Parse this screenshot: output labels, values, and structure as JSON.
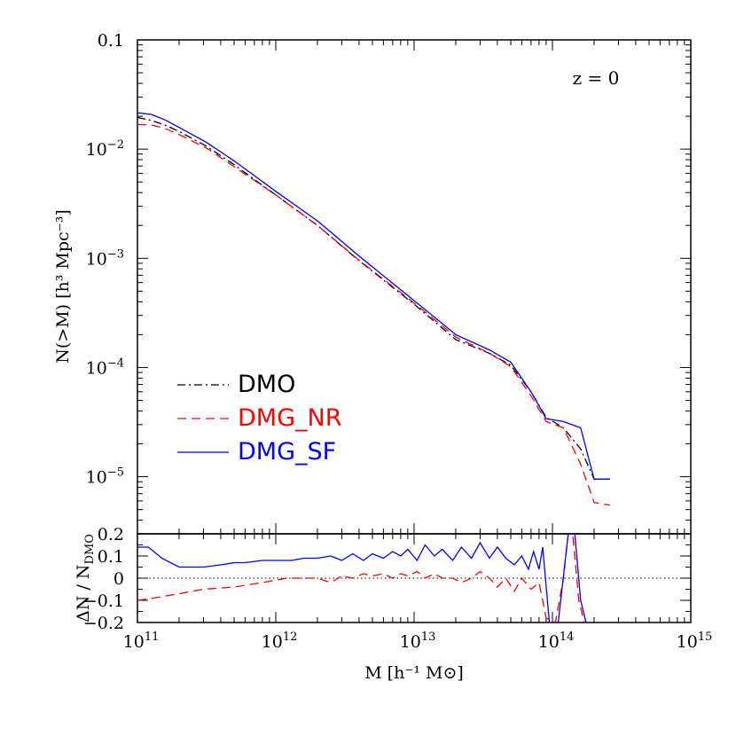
{
  "chart_data": [
    {
      "type": "line",
      "panel": "main",
      "annotation": "z = 0",
      "ylabel": "N(>M) [h³ Mpc⁻³]",
      "y_scale": "log",
      "ylim": [
        3e-06,
        0.1
      ],
      "x_scale": "log",
      "xlim": [
        100000000000.0,
        1000000000000000.0
      ],
      "y_tick_labels": [
        {
          "value": 0.1,
          "base": "0.1",
          "exp": ""
        },
        {
          "value": 0.01,
          "base": "10",
          "exp": "−2"
        },
        {
          "value": 0.001,
          "base": "10",
          "exp": "−3"
        },
        {
          "value": 0.0001,
          "base": "10",
          "exp": "−4"
        },
        {
          "value": 1e-05,
          "base": "10",
          "exp": "−5"
        }
      ],
      "legend_position": "lower-left",
      "series": [
        {
          "name": "DMO",
          "color": "#000000",
          "dash": "dashdot",
          "x": [
            100000000000.0,
            126000000000.0,
            158000000000.0,
            200000000000.0,
            316000000000.0,
            500000000000.0,
            1000000000000.0,
            2000000000000.0,
            4000000000000.0,
            10000000000000.0,
            20000000000000.0,
            35000000000000.0,
            50000000000000.0,
            70000000000000.0,
            90000000000000.0,
            120000000000000.0,
            160000000000000.0,
            200000000000000.0,
            260000000000000.0
          ],
          "y": [
            0.0195,
            0.0183,
            0.0166,
            0.0145,
            0.0106,
            0.0072,
            0.0038,
            0.002,
            0.00095,
            0.00038,
            0.00018,
            0.000135,
            0.000105,
            6e-05,
            3.5e-05,
            2.8e-05,
            1.8e-05,
            9.5e-06,
            9.5e-06
          ]
        },
        {
          "name": "DMG_NR",
          "color": "#ff0000",
          "dash": "dashed",
          "x": [
            100000000000.0,
            126000000000.0,
            158000000000.0,
            200000000000.0,
            316000000000.0,
            500000000000.0,
            1000000000000.0,
            2000000000000.0,
            4000000000000.0,
            10000000000000.0,
            20000000000000.0,
            35000000000000.0,
            50000000000000.0,
            70000000000000.0,
            90000000000000.0,
            120000000000000.0,
            160000000000000.0,
            200000000000000.0,
            260000000000000.0
          ],
          "y": [
            0.0168,
            0.0166,
            0.0155,
            0.0136,
            0.0102,
            0.0069,
            0.0038,
            0.002,
            0.00096,
            0.00039,
            0.00019,
            0.000135,
            0.000102,
            5.5e-05,
            3.2e-05,
            2.8e-05,
            1.3e-05,
            5.8e-06,
            5.5e-06
          ]
        },
        {
          "name": "DMG_SF",
          "color": "#0000ff",
          "dash": "solid",
          "x": [
            100000000000.0,
            126000000000.0,
            158000000000.0,
            200000000000.0,
            316000000000.0,
            500000000000.0,
            1000000000000.0,
            2000000000000.0,
            4000000000000.0,
            10000000000000.0,
            20000000000000.0,
            35000000000000.0,
            50000000000000.0,
            70000000000000.0,
            90000000000000.0,
            120000000000000.0,
            160000000000000.0,
            200000000000000.0,
            260000000000000.0
          ],
          "y": [
            0.0215,
            0.0208,
            0.0185,
            0.0158,
            0.0115,
            0.0078,
            0.0041,
            0.0022,
            0.00105,
            0.00041,
            0.0002,
            0.000145,
            0.000112,
            6e-05,
            3.4e-05,
            3.2e-05,
            2.8e-05,
            9.5e-06,
            9.5e-06
          ]
        }
      ]
    },
    {
      "type": "line",
      "panel": "residual",
      "ylabel_main": "ΔN / N",
      "ylabel_sub": "DMO",
      "xlabel": "M [h⁻¹ M⊙]",
      "x_scale": "log",
      "xlim": [
        100000000000.0,
        1000000000000000.0
      ],
      "ylim": [
        -0.2,
        0.2
      ],
      "y_tick_labels": [
        "0.2",
        "0.1",
        "0",
        "−0.1",
        "−0.2"
      ],
      "y_tick_values": [
        0.2,
        0.1,
        0,
        -0.1,
        -0.2
      ],
      "x_tick_labels": [
        {
          "value": 100000000000.0,
          "base": "10",
          "exp": "11"
        },
        {
          "value": 1000000000000.0,
          "base": "10",
          "exp": "12"
        },
        {
          "value": 10000000000000.0,
          "base": "10",
          "exp": "13"
        },
        {
          "value": 100000000000000.0,
          "base": "10",
          "exp": "14"
        },
        {
          "value": 1000000000000000.0,
          "base": "10",
          "exp": "15"
        }
      ],
      "reference_line": 0,
      "series": [
        {
          "name": "DMG_NR",
          "color": "#ff0000",
          "dash": "dashed",
          "x": [
            100000000000.0,
            130000000000.0,
            200000000000.0,
            300000000000.0,
            500000000000.0,
            800000000000.0,
            1200000000000.0,
            1600000000000.0,
            2000000000000.0,
            2500000000000.0,
            3000000000000.0,
            3600000000000.0,
            4300000000000.0,
            5000000000000.0,
            6000000000000.0,
            7000000000000.0,
            8000000000000.0,
            9000000000000.0,
            10500000000000.0,
            12000000000000.0,
            14000000000000.0,
            16000000000000.0,
            19000000000000.0,
            22000000000000.0,
            26000000000000.0,
            30000000000000.0,
            35000000000000.0,
            40000000000000.0,
            46000000000000.0,
            53000000000000.0,
            60000000000000.0,
            70000000000000.0,
            80000000000000.0,
            90000000000000.0,
            105000000000000.0,
            120000000000000.0,
            130000000000000.0,
            140000000000000.0,
            155000000000000.0,
            170000000000000.0
          ],
          "y": [
            -0.1,
            -0.09,
            -0.07,
            -0.05,
            -0.04,
            -0.02,
            0.0,
            0.0,
            0.0,
            -0.02,
            0.01,
            0.0,
            0.02,
            0.01,
            0.02,
            0.0,
            0.02,
            0.01,
            0.03,
            0.0,
            0.02,
            0.0,
            0.0,
            -0.02,
            0.0,
            0.03,
            0.0,
            -0.04,
            0.0,
            -0.06,
            0.0,
            -0.05,
            -0.02,
            -0.18,
            -0.2,
            0.0,
            0.2,
            0.2,
            -0.1,
            -0.2
          ]
        },
        {
          "name": "DMG_SF",
          "color": "#0000ff",
          "dash": "solid",
          "x": [
            100000000000.0,
            120000000000.0,
            150000000000.0,
            200000000000.0,
            250000000000.0,
            300000000000.0,
            400000000000.0,
            500000000000.0,
            600000000000.0,
            800000000000.0,
            1000000000000.0,
            1300000000000.0,
            1600000000000.0,
            2000000000000.0,
            2500000000000.0,
            3000000000000.0,
            3600000000000.0,
            4300000000000.0,
            5000000000000.0,
            6000000000000.0,
            7000000000000.0,
            8000000000000.0,
            9000000000000.0,
            10500000000000.0,
            12000000000000.0,
            14000000000000.0,
            16000000000000.0,
            19000000000000.0,
            22000000000000.0,
            26000000000000.0,
            30000000000000.0,
            35000000000000.0,
            40000000000000.0,
            46000000000000.0,
            53000000000000.0,
            60000000000000.0,
            67000000000000.0,
            73000000000000.0,
            80000000000000.0,
            85000000000000.0,
            95000000000000.0,
            110000000000000.0,
            130000000000000.0,
            145000000000000.0,
            160000000000000.0,
            175000000000000.0
          ],
          "y": [
            0.14,
            0.14,
            0.09,
            0.05,
            0.05,
            0.05,
            0.06,
            0.07,
            0.07,
            0.08,
            0.08,
            0.08,
            0.09,
            0.09,
            0.1,
            0.08,
            0.11,
            0.08,
            0.11,
            0.09,
            0.12,
            0.1,
            0.13,
            0.08,
            0.15,
            0.1,
            0.13,
            0.08,
            0.14,
            0.09,
            0.16,
            0.09,
            0.14,
            0.09,
            0.06,
            0.1,
            0.04,
            0.12,
            0.04,
            0.14,
            -0.2,
            -0.2,
            0.2,
            0.2,
            -0.1,
            -0.2
          ]
        }
      ]
    }
  ]
}
